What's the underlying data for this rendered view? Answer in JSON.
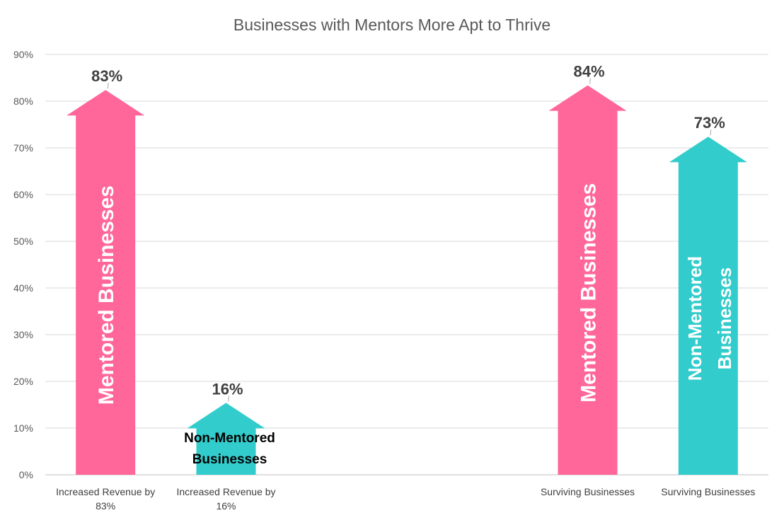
{
  "chart_data": {
    "type": "bar",
    "title": "Businesses with Mentors More Apt to Thrive",
    "xlabel": "",
    "ylabel": "",
    "ylim": [
      0,
      0.9
    ],
    "yticks": [
      "0%",
      "10%",
      "20%",
      "30%",
      "40%",
      "50%",
      "60%",
      "70%",
      "80%",
      "90%"
    ],
    "grid": true,
    "bar_style": "arrow",
    "bars": [
      {
        "slot": 0,
        "category": [
          "Increased Revenue by",
          "83%"
        ],
        "value": 0.83,
        "label": "83%",
        "inner_label": [
          "Mentored Businesses"
        ],
        "inner_orientation": "vertical",
        "color": "#ff6699"
      },
      {
        "slot": 1,
        "category": [
          "Increased Revenue by",
          "16%"
        ],
        "value": 0.16,
        "label": "16%",
        "inner_label": [
          "Non-Mentored",
          "Businesses"
        ],
        "inner_orientation": "horizontal",
        "color": "#33cccc"
      },
      {
        "slot": 4,
        "category": [
          "Surviving Businesses"
        ],
        "value": 0.84,
        "label": "84%",
        "inner_label": [
          "Mentored Businesses"
        ],
        "inner_orientation": "vertical",
        "color": "#ff6699"
      },
      {
        "slot": 5,
        "category": [
          "Surviving Businesses"
        ],
        "value": 0.73,
        "label": "73%",
        "inner_label": [
          "Non-Mentored",
          "Businesses"
        ],
        "inner_orientation": "vertical",
        "color": "#33cccc"
      }
    ],
    "slots": 6
  }
}
